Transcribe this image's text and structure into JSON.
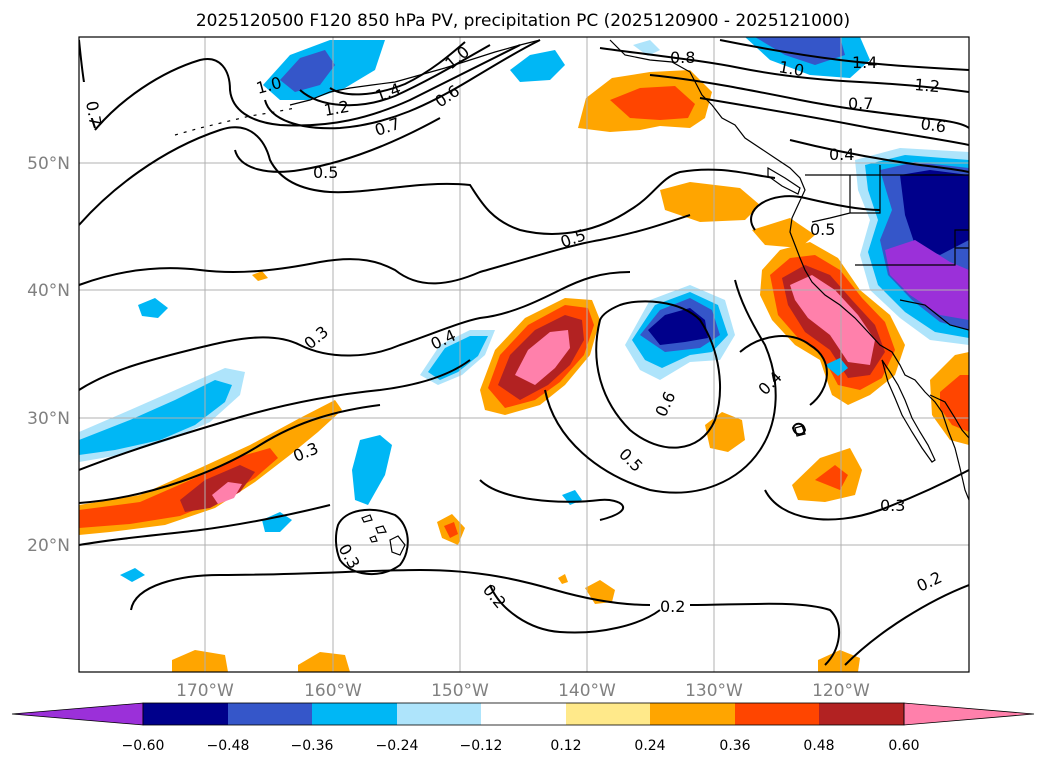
{
  "title": "2025120500 F120 850 hPa PV, precipitation PC (2025120900 - 2025121000)",
  "latitude_ticks": [
    "50°N",
    "40°N",
    "30°N",
    "20°N"
  ],
  "longitude_ticks": [
    "170°W",
    "160°W",
    "150°W",
    "140°W",
    "130°W",
    "120°W"
  ],
  "contour_labels": {
    "c0": "0.7",
    "c1": "1.0",
    "c2": "1.4",
    "c3": "1.2",
    "c4": "0.7",
    "c5": "0.6",
    "c6": "1.0",
    "c7": "0.8",
    "c8": "1.0",
    "c9": "1.4",
    "c10": "1.2",
    "c11": "0.7",
    "c12": "0.6",
    "c13": "0.4",
    "c14": "0.5",
    "c15": "0.5",
    "c16": "0.5",
    "c17": "0.3",
    "c18": "0.4",
    "c19": "0.6",
    "c20": "0.5",
    "c21": "0.4",
    "c22": "0.3",
    "c23": "0.3",
    "c24": "0.2",
    "c25": "0.2",
    "c26": "0.3",
    "c27": "0.2"
  },
  "colorbar": {
    "tick_labels": [
      "−0.60",
      "−0.48",
      "−0.36",
      "−0.24",
      "−0.12",
      "0.12",
      "0.24",
      "0.36",
      "0.48",
      "0.60"
    ],
    "colors": [
      "#9b30d9",
      "#00008b",
      "#3556c9",
      "#00b7f5",
      "#aee4fb",
      "#ffffff",
      "#ffe98a",
      "#ffa500",
      "#ff4500",
      "#b22222",
      "#ff7fae",
      "#ff80ab"
    ]
  },
  "shading_colors": {
    "purple": "#9b30d9",
    "navy": "#00008b",
    "royal": "#3556c9",
    "sky": "#00b7f5",
    "pale": "#aee4fb",
    "yellow": "#ffe98a",
    "orange": "#ffa500",
    "red": "#ff4500",
    "brick": "#b22222",
    "pink": "#ff80ab"
  }
}
